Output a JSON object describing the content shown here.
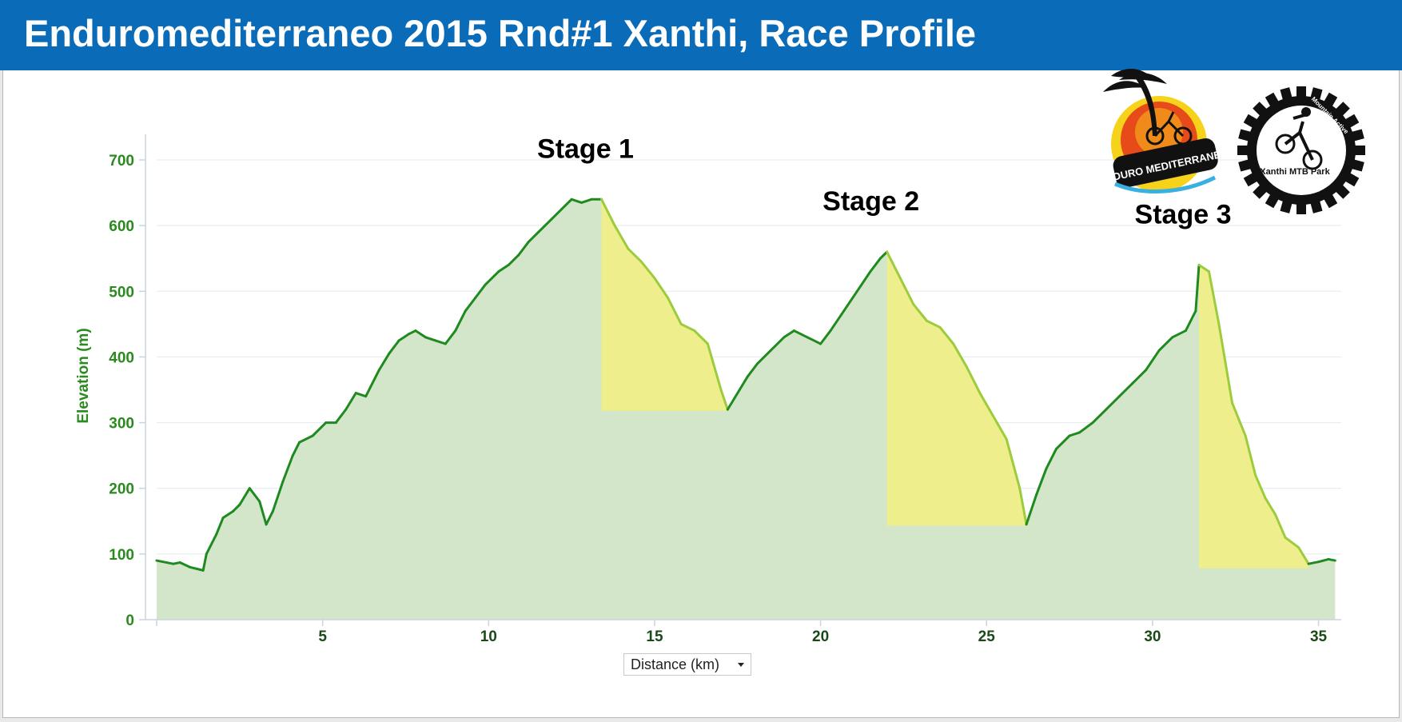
{
  "header": {
    "title": "Enduromediterraneo 2015 Rnd#1 Xanthi, Race Profile"
  },
  "axis_selector": {
    "label": "Distance (km)"
  },
  "logos": [
    {
      "name": "enduro-mediterraneo-logo",
      "text": "ENDURO MEDITERRANEO"
    },
    {
      "name": "xanthi-mtb-park-logo",
      "text": "Xanthi MTB Park",
      "ring_text": "Mountain Active"
    }
  ],
  "colors": {
    "header": "#0a6cb8",
    "line": "#1f8a1f",
    "area_fill": "#d3e6c9",
    "stage_fill": "#eeee8c",
    "stage_line": "#9ccc3c",
    "axis_text": "#2a8a1f",
    "grid": "#e4e9ee"
  },
  "chart_data": {
    "type": "area",
    "ylabel": "Elevation (m)",
    "xlabel": "Distance (km)",
    "xlim": [
      0,
      35.5
    ],
    "ylim": [
      0,
      700
    ],
    "xticks": [
      5,
      10,
      15,
      20,
      25,
      30,
      35
    ],
    "yticks": [
      0,
      100,
      200,
      300,
      400,
      500,
      600,
      700
    ],
    "grid": true,
    "series": [
      {
        "x": [
          0,
          0.5,
          0.7,
          1.0,
          1.4,
          1.5,
          1.8,
          2.0,
          2.3,
          2.5,
          2.8,
          3.1,
          3.3,
          3.5,
          3.8,
          4.1,
          4.3,
          4.7,
          5.1,
          5.4,
          5.7,
          6.0,
          6.3,
          6.7,
          7.0,
          7.3,
          7.6,
          7.8,
          8.1,
          8.4,
          8.7,
          9.0,
          9.3,
          9.6,
          9.9,
          10.3,
          10.6,
          10.9,
          11.2,
          11.5,
          11.9,
          12.2,
          12.5,
          12.8,
          13.1,
          13.4,
          13.8,
          14.2,
          14.6,
          15.0,
          15.4,
          15.8,
          16.2,
          16.6,
          17.0,
          17.2,
          17.5,
          17.8,
          18.1,
          18.5,
          18.9,
          19.2,
          19.6,
          20.0,
          20.3,
          20.7,
          21.1,
          21.5,
          21.8,
          22.0,
          22.4,
          22.8,
          23.2,
          23.6,
          24.0,
          24.4,
          24.8,
          25.2,
          25.6,
          26.0,
          26.2,
          26.5,
          26.8,
          27.1,
          27.5,
          27.8,
          28.2,
          28.6,
          29.0,
          29.4,
          29.8,
          30.2,
          30.6,
          31.0,
          31.3,
          31.4,
          31.7,
          32.0,
          32.4,
          32.8,
          33.1,
          33.4,
          33.7,
          34.0,
          34.4,
          34.7,
          35.0,
          35.3,
          35.5
        ],
        "y": [
          90,
          85,
          87,
          80,
          75,
          100,
          130,
          155,
          165,
          175,
          200,
          180,
          145,
          165,
          210,
          250,
          270,
          280,
          300,
          300,
          320,
          345,
          340,
          380,
          405,
          425,
          435,
          440,
          430,
          425,
          420,
          440,
          470,
          490,
          510,
          530,
          540,
          555,
          575,
          590,
          610,
          625,
          640,
          635,
          640,
          640,
          600,
          565,
          545,
          520,
          490,
          450,
          440,
          420,
          350,
          320,
          345,
          370,
          390,
          410,
          430,
          440,
          430,
          420,
          440,
          470,
          500,
          530,
          550,
          560,
          520,
          480,
          455,
          445,
          420,
          385,
          345,
          310,
          275,
          200,
          145,
          190,
          230,
          260,
          280,
          285,
          300,
          320,
          340,
          360,
          380,
          410,
          430,
          440,
          470,
          540,
          530,
          450,
          330,
          280,
          220,
          185,
          160,
          125,
          110,
          85,
          88,
          92,
          90
        ]
      }
    ],
    "stages": [
      {
        "label": "Stage 1",
        "start_km": 13.4,
        "end_km": 17.2,
        "base_m": 318
      },
      {
        "label": "Stage 2",
        "start_km": 22.0,
        "end_km": 26.2,
        "base_m": 143
      },
      {
        "label": "Stage 3",
        "start_km": 31.4,
        "end_km": 34.7,
        "base_m": 78
      }
    ]
  }
}
